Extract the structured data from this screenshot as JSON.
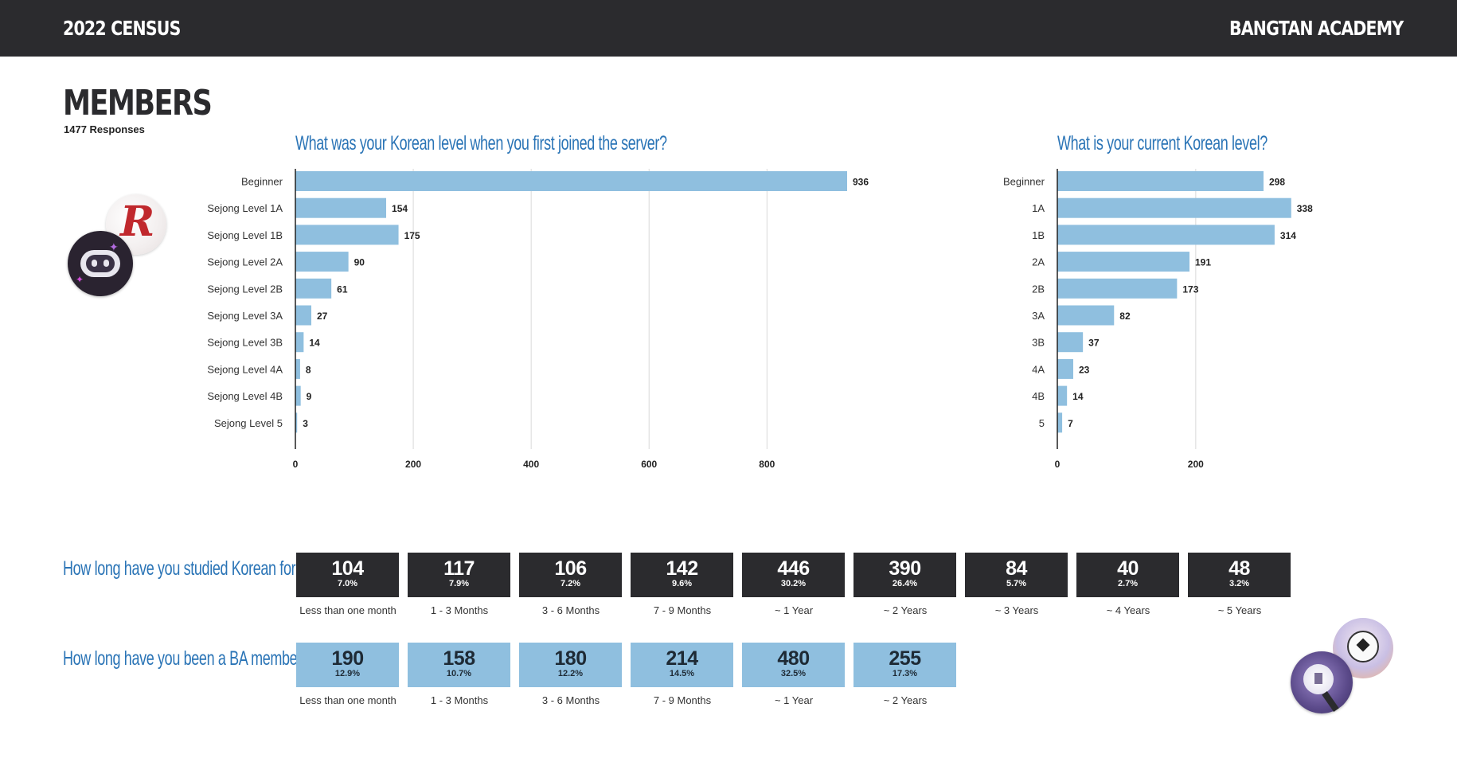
{
  "header": {
    "left": "2022 CENSUS",
    "right": "BANGTAN ACADEMY"
  },
  "section": {
    "title": "MEMBERS",
    "subtitle": "1477 Responses"
  },
  "chart_data": [
    {
      "type": "bar",
      "orientation": "horizontal",
      "title": "What was your Korean level when you first joined the server?",
      "categories": [
        "Beginner",
        "Sejong Level 1A",
        "Sejong Level 1B",
        "Sejong Level 2A",
        "Sejong Level 2B",
        "Sejong Level 3A",
        "Sejong Level 3B",
        "Sejong Level 4A",
        "Sejong Level 4B",
        "Sejong Level 5"
      ],
      "values": [
        936,
        154,
        175,
        90,
        61,
        27,
        14,
        8,
        9,
        3
      ],
      "xlim": [
        0,
        960
      ],
      "xticks": [
        0,
        200,
        400,
        600,
        800
      ],
      "grid": true,
      "color": "#8fbfdf"
    },
    {
      "type": "bar",
      "orientation": "horizontal",
      "title": "What is your current Korean level?",
      "categories": [
        "Beginner",
        "1A",
        "1B",
        "2A",
        "2B",
        "3A",
        "3B",
        "4A",
        "4B",
        "5"
      ],
      "values": [
        298,
        338,
        314,
        191,
        173,
        82,
        37,
        23,
        14,
        7
      ],
      "xlim": [
        0,
        340
      ],
      "xticks": [
        0,
        200
      ],
      "grid": true,
      "color": "#8fbfdf"
    }
  ],
  "studied": {
    "question": "How long have you studied Korean for?",
    "items": [
      {
        "value": "104",
        "pct": "7.0%",
        "label": "Less than one month"
      },
      {
        "value": "117",
        "pct": "7.9%",
        "label": "1 - 3 Months"
      },
      {
        "value": "106",
        "pct": "7.2%",
        "label": "3 - 6 Months"
      },
      {
        "value": "142",
        "pct": "9.6%",
        "label": "7 - 9 Months"
      },
      {
        "value": "446",
        "pct": "30.2%",
        "label": "~ 1 Year"
      },
      {
        "value": "390",
        "pct": "26.4%",
        "label": "~ 2 Years"
      },
      {
        "value": "84",
        "pct": "5.7%",
        "label": "~ 3 Years"
      },
      {
        "value": "40",
        "pct": "2.7%",
        "label": "~ 4 Years"
      },
      {
        "value": "48",
        "pct": "3.2%",
        "label": "~ 5 Years"
      }
    ]
  },
  "member": {
    "question": "How long have you been a BA member?",
    "items": [
      {
        "value": "190",
        "pct": "12.9%",
        "label": "Less than one month"
      },
      {
        "value": "158",
        "pct": "10.7%",
        "label": "1 - 3 Months"
      },
      {
        "value": "180",
        "pct": "12.2%",
        "label": "3 - 6 Months"
      },
      {
        "value": "214",
        "pct": "14.5%",
        "label": "7 - 9 Months"
      },
      {
        "value": "480",
        "pct": "32.5%",
        "label": "~ 1 Year"
      },
      {
        "value": "255",
        "pct": "17.3%",
        "label": "~ 2 Years"
      }
    ]
  },
  "decorations": {
    "icons": [
      "letter-r-sticker-icon",
      "robot-sticker-icon",
      "soccer-ball-sticker-icon",
      "army-bomb-sticker-icon"
    ],
    "sticker_letter": "R"
  }
}
